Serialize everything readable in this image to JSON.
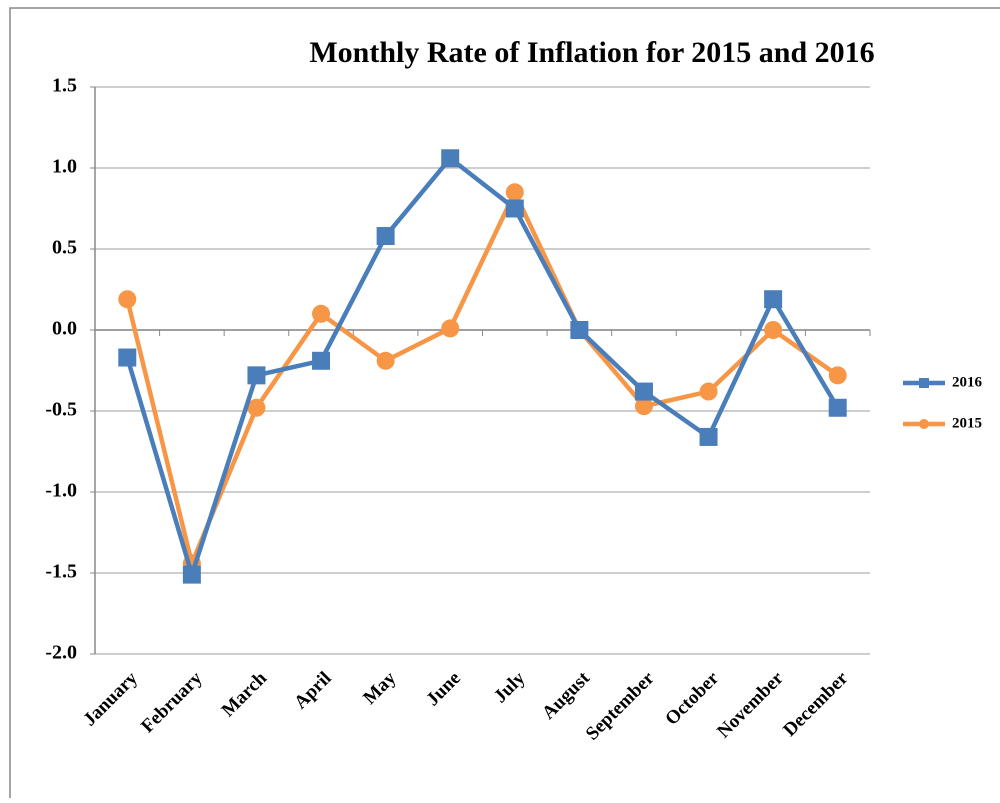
{
  "chart_data": {
    "type": "line",
    "title": "Monthly Rate of  Inflation for 2015 and 2016",
    "categories": [
      "January",
      "February",
      "March",
      "April",
      "May",
      "June",
      "July",
      "August",
      "September",
      "October",
      "November",
      "December"
    ],
    "series": [
      {
        "name": "2016",
        "color": "#4a7ebb",
        "marker": "square",
        "values": [
          -0.17,
          -1.51,
          -0.28,
          -0.19,
          0.58,
          1.06,
          0.75,
          0.0,
          -0.38,
          -0.66,
          0.19,
          -0.48
        ]
      },
      {
        "name": "2015",
        "color": "#f79646",
        "marker": "circle",
        "values": [
          0.19,
          -1.44,
          -0.48,
          0.1,
          -0.19,
          0.01,
          0.85,
          0.0,
          -0.47,
          -0.38,
          0.0,
          -0.28
        ]
      }
    ],
    "ylim": [
      -2,
      1.5
    ],
    "yticks": [
      {
        "value": -2,
        "label": "-2.0"
      },
      -1.5,
      {
        "value": -1,
        "label": "-1.0"
      },
      -0.5,
      {
        "value": 0,
        "label": "0.0"
      },
      0.5,
      {
        "value": 1,
        "label": "1.0"
      },
      1.5
    ],
    "grid": true,
    "legend": "right"
  }
}
